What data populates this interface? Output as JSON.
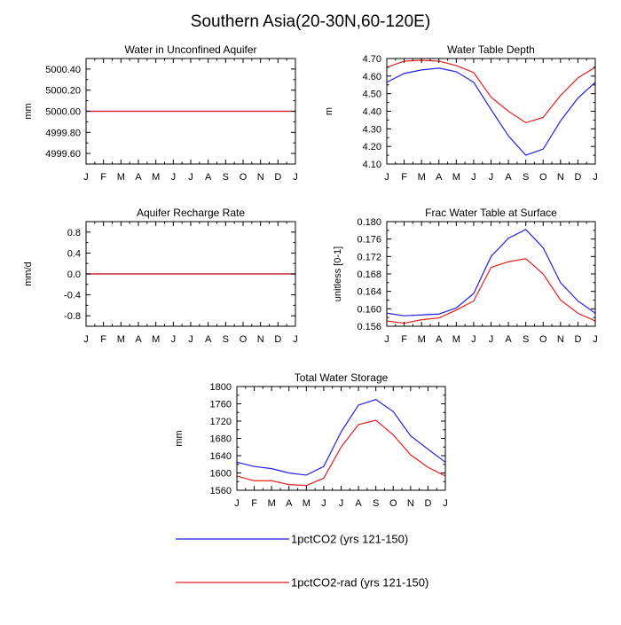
{
  "title": "Southern Asia(20-30N,60-120E)",
  "months": [
    "J",
    "F",
    "M",
    "A",
    "M",
    "J",
    "J",
    "A",
    "S",
    "O",
    "N",
    "D",
    "J"
  ],
  "colors": {
    "blue": "#1f1fe0",
    "red": "#e61e1e"
  },
  "legend": [
    {
      "label": "1pctCO2 (yrs 121-150)",
      "color": "#1f1fe0"
    },
    {
      "label": "1pctCO2-rad (yrs 121-150)",
      "color": "#e61e1e"
    }
  ],
  "chart_data": [
    {
      "type": "line",
      "title": "Water in Unconfined Aquifer",
      "ylabel": "mm",
      "xlabel": "",
      "ylim": [
        4999.5,
        5000.5
      ],
      "yticks": [
        4999.6,
        4999.8,
        5000.0,
        5000.2,
        5000.4
      ],
      "ytick_labels": [
        "4999.60",
        "4999.80",
        "5000.00",
        "5000.20",
        "5000.40"
      ],
      "x": [
        "J",
        "F",
        "M",
        "A",
        "M",
        "J",
        "J",
        "A",
        "S",
        "O",
        "N",
        "D",
        "J"
      ],
      "series": [
        {
          "name": "1pctCO2 (yrs 121-150)",
          "color": "#1f1fe0",
          "values": [
            5000,
            5000,
            5000,
            5000,
            5000,
            5000,
            5000,
            5000,
            5000,
            5000,
            5000,
            5000,
            5000
          ]
        },
        {
          "name": "1pctCO2-rad (yrs 121-150)",
          "color": "#e61e1e",
          "values": [
            5000,
            5000,
            5000,
            5000,
            5000,
            5000,
            5000,
            5000,
            5000,
            5000,
            5000,
            5000,
            5000
          ]
        }
      ]
    },
    {
      "type": "line",
      "title": "Water Table Depth",
      "ylabel": "m",
      "xlabel": "",
      "ylim": [
        4.1,
        4.7
      ],
      "yticks": [
        4.1,
        4.2,
        4.3,
        4.4,
        4.5,
        4.6,
        4.7
      ],
      "ytick_labels": [
        "4.10",
        "4.20",
        "4.30",
        "4.40",
        "4.50",
        "4.60",
        "4.70"
      ],
      "x": [
        "J",
        "F",
        "M",
        "A",
        "M",
        "J",
        "J",
        "A",
        "S",
        "O",
        "N",
        "D",
        "J"
      ],
      "series": [
        {
          "name": "1pctCO2 (yrs 121-150)",
          "color": "#1f1fe0",
          "values": [
            4.565,
            4.615,
            4.635,
            4.645,
            4.625,
            4.565,
            4.41,
            4.26,
            4.15,
            4.185,
            4.345,
            4.475,
            4.565
          ]
        },
        {
          "name": "1pctCO2-rad (yrs 121-150)",
          "color": "#e61e1e",
          "values": [
            4.65,
            4.685,
            4.69,
            4.685,
            4.66,
            4.62,
            4.48,
            4.4,
            4.335,
            4.365,
            4.49,
            4.59,
            4.65
          ]
        }
      ]
    },
    {
      "type": "line",
      "title": "Aquifer Recharge Rate",
      "ylabel": "mm/d",
      "xlabel": "",
      "ylim": [
        -1.0,
        1.0
      ],
      "yticks": [
        -0.8,
        -0.4,
        0.0,
        0.4,
        0.8
      ],
      "ytick_labels": [
        "-0.8",
        "-0.4",
        "0.0",
        "0.4",
        "0.8"
      ],
      "x": [
        "J",
        "F",
        "M",
        "A",
        "M",
        "J",
        "J",
        "A",
        "S",
        "O",
        "N",
        "D",
        "J"
      ],
      "series": [
        {
          "name": "1pctCO2 (yrs 121-150)",
          "color": "#1f1fe0",
          "values": [
            0,
            0,
            0,
            0,
            0,
            0,
            0,
            0,
            0,
            0,
            0,
            0,
            0
          ]
        },
        {
          "name": "1pctCO2-rad (yrs 121-150)",
          "color": "#e61e1e",
          "values": [
            0,
            0,
            0,
            0,
            0,
            0,
            0,
            0,
            0,
            0,
            0,
            0,
            0
          ]
        }
      ]
    },
    {
      "type": "line",
      "title": "Frac Water Table at Surface",
      "ylabel": "unitless [0-1]",
      "xlabel": "",
      "ylim": [
        0.156,
        0.18
      ],
      "yticks": [
        0.156,
        0.16,
        0.164,
        0.168,
        0.172,
        0.176,
        0.18
      ],
      "ytick_labels": [
        "0.156",
        "0.160",
        "0.164",
        "0.168",
        "0.172",
        "0.176",
        "0.180"
      ],
      "x": [
        "J",
        "F",
        "M",
        "A",
        "M",
        "J",
        "J",
        "A",
        "S",
        "O",
        "N",
        "D",
        "J"
      ],
      "series": [
        {
          "name": "1pctCO2 (yrs 121-150)",
          "color": "#1f1fe0",
          "values": [
            0.159,
            0.1584,
            0.1586,
            0.1588,
            0.1602,
            0.1635,
            0.172,
            0.1762,
            0.1782,
            0.174,
            0.166,
            0.1618,
            0.159
          ]
        },
        {
          "name": "1pctCO2-rad (yrs 121-150)",
          "color": "#e61e1e",
          "values": [
            0.1572,
            0.1567,
            0.1575,
            0.1579,
            0.1597,
            0.1618,
            0.1695,
            0.1708,
            0.1715,
            0.168,
            0.162,
            0.159,
            0.1572
          ]
        }
      ]
    },
    {
      "type": "line",
      "title": "Total Water Storage",
      "ylabel": "mm",
      "xlabel": "",
      "ylim": [
        1560,
        1800
      ],
      "yticks": [
        1560,
        1600,
        1640,
        1680,
        1720,
        1760,
        1800
      ],
      "ytick_labels": [
        "1560",
        "1600",
        "1640",
        "1680",
        "1720",
        "1760",
        "1800"
      ],
      "x": [
        "J",
        "F",
        "M",
        "A",
        "M",
        "J",
        "J",
        "A",
        "S",
        "O",
        "N",
        "D",
        "J"
      ],
      "series": [
        {
          "name": "1pctCO2 (yrs 121-150)",
          "color": "#1f1fe0",
          "values": [
            1625,
            1615,
            1610,
            1600,
            1595,
            1615,
            1695,
            1757,
            1770,
            1742,
            1686,
            1655,
            1625
          ]
        },
        {
          "name": "1pctCO2-rad (yrs 121-150)",
          "color": "#e61e1e",
          "values": [
            1593,
            1582,
            1582,
            1573,
            1571,
            1588,
            1660,
            1712,
            1722,
            1688,
            1642,
            1613,
            1593
          ]
        }
      ]
    }
  ]
}
